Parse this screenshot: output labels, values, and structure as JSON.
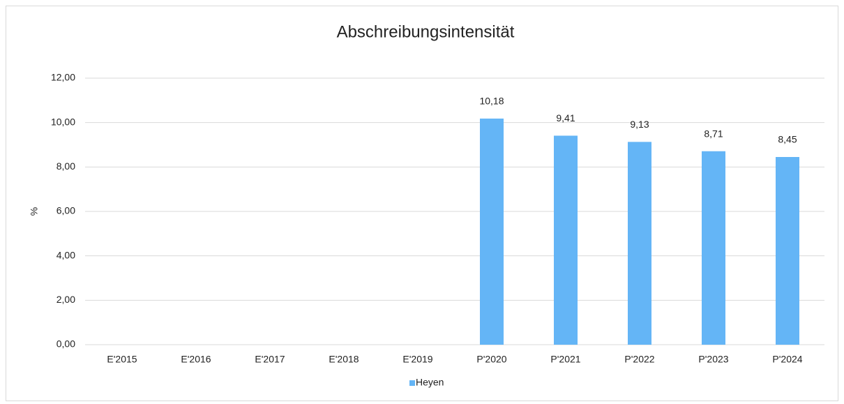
{
  "chart_data": {
    "type": "bar",
    "title": "Abschreibungsintensität",
    "y_label": "%",
    "categories": [
      "E'2015",
      "E'2016",
      "E'2017",
      "E'2018",
      "E'2019",
      "P'2020",
      "P'2021",
      "P'2022",
      "P'2023",
      "P'2024"
    ],
    "series": [
      {
        "name": "Heyen",
        "color": "#64b5f6",
        "values": [
          null,
          null,
          null,
          null,
          null,
          10.18,
          9.41,
          9.13,
          8.71,
          8.45
        ],
        "value_labels": [
          null,
          null,
          null,
          null,
          null,
          "10,18",
          "9,41",
          "9,13",
          "8,71",
          "8,45"
        ]
      }
    ],
    "ylim": [
      0,
      12
    ],
    "yticks": [
      {
        "value": 0,
        "label": "0,00"
      },
      {
        "value": 2,
        "label": "2,00"
      },
      {
        "value": 4,
        "label": "4,00"
      },
      {
        "value": 6,
        "label": "6,00"
      },
      {
        "value": 8,
        "label": "8,00"
      },
      {
        "value": 10,
        "label": "10,00"
      },
      {
        "value": 12,
        "label": "12,00"
      }
    ],
    "grid": true,
    "legend": "bottom"
  }
}
